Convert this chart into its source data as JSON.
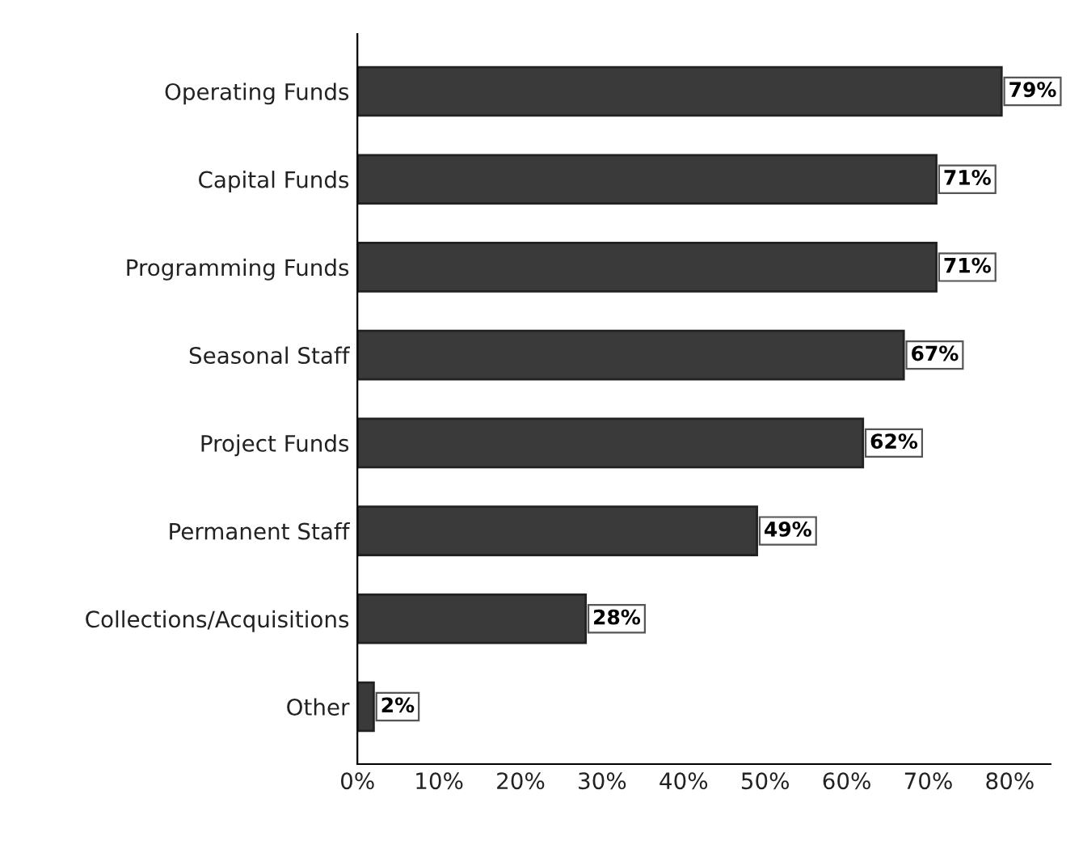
{
  "chart_data": {
    "type": "bar",
    "orientation": "horizontal",
    "categories": [
      "Operating Funds",
      "Capital Funds",
      "Programming Funds",
      "Seasonal Staff",
      "Project Funds",
      "Permanent Staff",
      "Collections/Acquisitions",
      "Other"
    ],
    "values": [
      79,
      71,
      71,
      67,
      62,
      49,
      28,
      2
    ],
    "value_labels": [
      "79%",
      "71%",
      "71%",
      "67%",
      "62%",
      "49%",
      "28%",
      "2%"
    ],
    "color": "#3a3a3a",
    "xlim": [
      0,
      85
    ],
    "xticks": [
      {
        "value": 0,
        "label": "0%"
      },
      {
        "value": 10,
        "label": "10%"
      },
      {
        "value": 20,
        "label": "20%"
      },
      {
        "value": 30,
        "label": "30%"
      },
      {
        "value": 40,
        "label": "40%"
      },
      {
        "value": 50,
        "label": "50%"
      },
      {
        "value": 60,
        "label": "60%"
      },
      {
        "value": 70,
        "label": "70%"
      },
      {
        "value": 80,
        "label": "80%"
      }
    ],
    "grid": false
  }
}
